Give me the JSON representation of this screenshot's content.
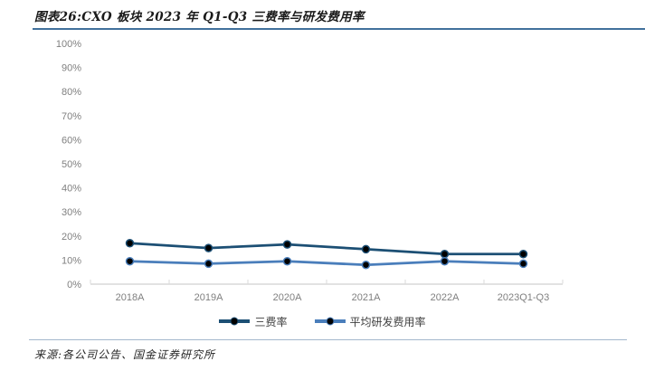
{
  "header": {
    "title": "图表26:CXO 板块 2023 年 Q1-Q3 三费率与研发费用率"
  },
  "chart_data": {
    "type": "line",
    "title": "CXO 板块 2023 年 Q1-Q3 三费率与研发费用率",
    "categories": [
      "2018A",
      "2019A",
      "2020A",
      "2021A",
      "2022A",
      "2023Q1-Q3"
    ],
    "series": [
      {
        "name": "三费率",
        "color": "#1C4F74",
        "values": [
          17,
          15,
          16.5,
          14.5,
          12.5,
          12.5
        ]
      },
      {
        "name": "平均研发费用率",
        "color": "#4A7EBB",
        "values": [
          9.5,
          8.5,
          9.5,
          8,
          9.5,
          8.5
        ]
      }
    ],
    "marker_color": "#000000",
    "xlabel": "",
    "ylabel": "",
    "ylim": [
      0,
      100
    ],
    "yticks": [
      "0%",
      "10%",
      "20%",
      "30%",
      "40%",
      "50%",
      "60%",
      "70%",
      "80%",
      "90%",
      "100%"
    ],
    "grid": false,
    "legend_position": "bottom"
  },
  "footer": {
    "source": "来源:各公司公告、国金证券研究所"
  },
  "colors": {
    "title_rule": "#41719C",
    "footer_rule": "#A3B8CD",
    "axis_line": "#D9D9D9",
    "tick_text": "#7F7F7F",
    "legend_text": "#404040"
  }
}
